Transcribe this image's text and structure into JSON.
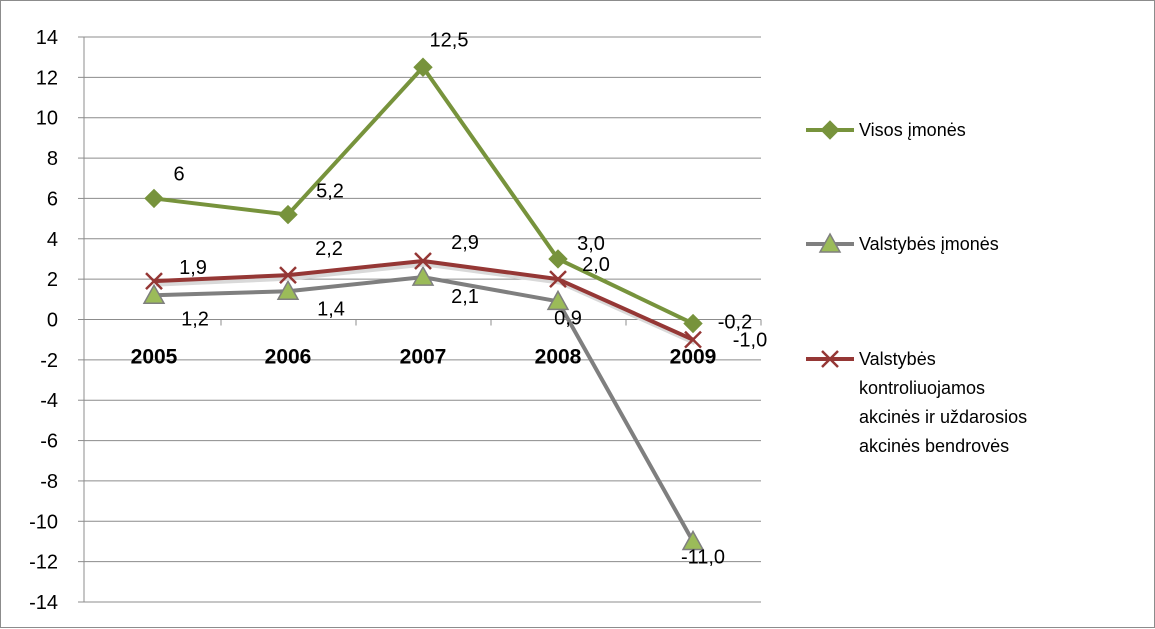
{
  "chart_data": {
    "type": "line",
    "categories": [
      "2005",
      "2006",
      "2007",
      "2008",
      "2009"
    ],
    "ylim": [
      -14,
      14
    ],
    "ytick_step": 2,
    "yticks": [
      "14",
      "12",
      "10",
      "8",
      "6",
      "4",
      "2",
      "0",
      "-2",
      "-4",
      "-6",
      "-8",
      "-10",
      "-12",
      "-14"
    ],
    "grid": true,
    "legend_position": "right",
    "series": [
      {
        "name": "Visos įmonės",
        "values": [
          6.0,
          5.2,
          12.5,
          3.0,
          -0.2
        ],
        "labels": [
          "6",
          "5,2",
          "12,5",
          "3,0",
          "-0,2"
        ],
        "color": "#77933c",
        "marker": "diamond"
      },
      {
        "name": "Valstybės įmonės",
        "values": [
          1.2,
          1.4,
          2.1,
          0.9,
          -11.0
        ],
        "labels": [
          "1,2",
          "1,4",
          "2,1",
          "0,9",
          "-11,0"
        ],
        "color": "#7f7f7f",
        "marker": "triangle"
      },
      {
        "name": "Valstybės kontroliuojamos akcinės ir uždarosios akcinės bendrovės",
        "legend_lines": [
          "Valstybės",
          "kontroliuojamos",
          "akcinės ir uždarosios",
          "akcinės bendrovės"
        ],
        "values": [
          1.9,
          2.2,
          2.9,
          2.0,
          -1.0
        ],
        "labels": [
          "1,9",
          "2,2",
          "2,9",
          "2,0",
          "-1,0"
        ],
        "color": "#953735",
        "marker": "x"
      }
    ]
  }
}
